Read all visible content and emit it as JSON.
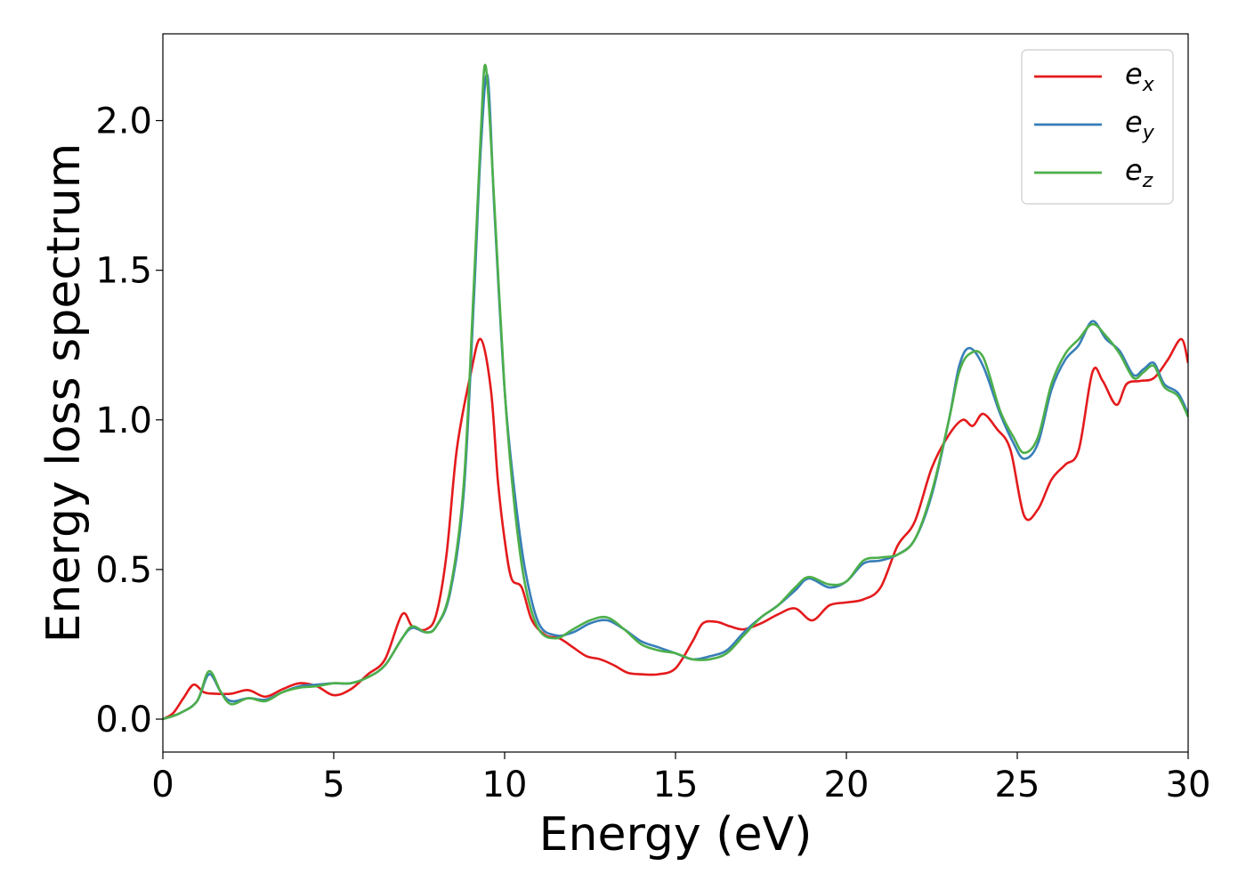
{
  "chart_data": {
    "type": "line",
    "title": "",
    "xlabel": "Energy (eV)",
    "ylabel": "Energy loss spectrum",
    "xlim": [
      0,
      30
    ],
    "ylim": [
      -0.11,
      2.29
    ],
    "xticks": [
      0,
      5,
      10,
      15,
      20,
      25,
      30
    ],
    "xtick_labels": [
      "0",
      "5",
      "10",
      "15",
      "20",
      "25",
      "30"
    ],
    "yticks": [
      0.0,
      0.5,
      1.0,
      1.5,
      2.0
    ],
    "ytick_labels": [
      "0.0",
      "0.5",
      "1.0",
      "1.5",
      "2.0"
    ],
    "grid": false,
    "legend_position": "top-right",
    "series": [
      {
        "name": "e",
        "subscript": "x",
        "color": "#e41a1c",
        "points": [
          [
            0,
            0
          ],
          [
            0.3,
            0.02
          ],
          [
            0.6,
            0.07
          ],
          [
            0.9,
            0.115
          ],
          [
            1.2,
            0.09
          ],
          [
            1.5,
            0.085
          ],
          [
            2.0,
            0.085
          ],
          [
            2.5,
            0.097
          ],
          [
            3.0,
            0.075
          ],
          [
            3.5,
            0.1
          ],
          [
            4.0,
            0.12
          ],
          [
            4.5,
            0.11
          ],
          [
            5.0,
            0.08
          ],
          [
            5.5,
            0.1
          ],
          [
            6.0,
            0.15
          ],
          [
            6.5,
            0.2
          ],
          [
            7.0,
            0.35
          ],
          [
            7.3,
            0.31
          ],
          [
            7.7,
            0.3
          ],
          [
            8.0,
            0.35
          ],
          [
            8.3,
            0.55
          ],
          [
            8.6,
            0.9
          ],
          [
            9.0,
            1.15
          ],
          [
            9.3,
            1.27
          ],
          [
            9.6,
            1.1
          ],
          [
            9.8,
            0.8
          ],
          [
            10.0,
            0.6
          ],
          [
            10.2,
            0.47
          ],
          [
            10.5,
            0.44
          ],
          [
            10.8,
            0.33
          ],
          [
            11.2,
            0.28
          ],
          [
            11.6,
            0.27
          ],
          [
            12.0,
            0.24
          ],
          [
            12.4,
            0.21
          ],
          [
            12.8,
            0.2
          ],
          [
            13.2,
            0.18
          ],
          [
            13.6,
            0.155
          ],
          [
            14.0,
            0.15
          ],
          [
            14.5,
            0.15
          ],
          [
            15.0,
            0.17
          ],
          [
            15.5,
            0.26
          ],
          [
            15.8,
            0.32
          ],
          [
            16.2,
            0.325
          ],
          [
            16.6,
            0.31
          ],
          [
            17.0,
            0.3
          ],
          [
            17.5,
            0.32
          ],
          [
            18.0,
            0.35
          ],
          [
            18.5,
            0.37
          ],
          [
            19.0,
            0.33
          ],
          [
            19.5,
            0.38
          ],
          [
            20.0,
            0.39
          ],
          [
            20.5,
            0.4
          ],
          [
            21.0,
            0.44
          ],
          [
            21.5,
            0.58
          ],
          [
            22.0,
            0.66
          ],
          [
            22.5,
            0.84
          ],
          [
            23.0,
            0.95
          ],
          [
            23.4,
            1.0
          ],
          [
            23.7,
            0.98
          ],
          [
            24.0,
            1.02
          ],
          [
            24.4,
            0.97
          ],
          [
            24.8,
            0.9
          ],
          [
            25.2,
            0.68
          ],
          [
            25.6,
            0.7
          ],
          [
            26.0,
            0.8
          ],
          [
            26.4,
            0.85
          ],
          [
            26.8,
            0.9
          ],
          [
            27.2,
            1.16
          ],
          [
            27.5,
            1.13
          ],
          [
            27.9,
            1.05
          ],
          [
            28.2,
            1.12
          ],
          [
            28.6,
            1.13
          ],
          [
            29.0,
            1.14
          ],
          [
            29.4,
            1.2
          ],
          [
            29.8,
            1.27
          ],
          [
            30.0,
            1.19
          ]
        ]
      },
      {
        "name": "e",
        "subscript": "y",
        "color": "#377eb8",
        "points": [
          [
            0,
            0
          ],
          [
            0.5,
            0.02
          ],
          [
            1.0,
            0.06
          ],
          [
            1.35,
            0.15
          ],
          [
            1.7,
            0.09
          ],
          [
            2.0,
            0.06
          ],
          [
            2.5,
            0.07
          ],
          [
            3.0,
            0.065
          ],
          [
            3.5,
            0.09
          ],
          [
            4.0,
            0.11
          ],
          [
            4.5,
            0.115
          ],
          [
            5.0,
            0.12
          ],
          [
            5.5,
            0.12
          ],
          [
            6.0,
            0.14
          ],
          [
            6.5,
            0.18
          ],
          [
            7.0,
            0.27
          ],
          [
            7.3,
            0.305
          ],
          [
            7.7,
            0.29
          ],
          [
            8.0,
            0.31
          ],
          [
            8.4,
            0.42
          ],
          [
            8.8,
            0.75
          ],
          [
            9.1,
            1.4
          ],
          [
            9.3,
            1.9
          ],
          [
            9.5,
            2.15
          ],
          [
            9.7,
            1.7
          ],
          [
            10.0,
            1.1
          ],
          [
            10.3,
            0.75
          ],
          [
            10.6,
            0.5
          ],
          [
            11.0,
            0.32
          ],
          [
            11.5,
            0.28
          ],
          [
            12.0,
            0.29
          ],
          [
            12.5,
            0.32
          ],
          [
            13.0,
            0.33
          ],
          [
            13.5,
            0.3
          ],
          [
            14.0,
            0.26
          ],
          [
            14.5,
            0.24
          ],
          [
            15.0,
            0.22
          ],
          [
            15.5,
            0.2
          ],
          [
            16.0,
            0.21
          ],
          [
            16.5,
            0.23
          ],
          [
            17.0,
            0.29
          ],
          [
            17.5,
            0.34
          ],
          [
            18.0,
            0.38
          ],
          [
            18.5,
            0.43
          ],
          [
            18.9,
            0.47
          ],
          [
            19.5,
            0.44
          ],
          [
            20.0,
            0.46
          ],
          [
            20.5,
            0.52
          ],
          [
            21.0,
            0.53
          ],
          [
            21.5,
            0.55
          ],
          [
            22.0,
            0.6
          ],
          [
            22.5,
            0.75
          ],
          [
            23.0,
            1.0
          ],
          [
            23.3,
            1.18
          ],
          [
            23.6,
            1.24
          ],
          [
            24.0,
            1.18
          ],
          [
            24.5,
            1.02
          ],
          [
            24.9,
            0.92
          ],
          [
            25.2,
            0.87
          ],
          [
            25.6,
            0.92
          ],
          [
            26.0,
            1.1
          ],
          [
            26.4,
            1.2
          ],
          [
            26.8,
            1.25
          ],
          [
            27.2,
            1.33
          ],
          [
            27.6,
            1.27
          ],
          [
            28.0,
            1.23
          ],
          [
            28.4,
            1.15
          ],
          [
            28.7,
            1.17
          ],
          [
            29.0,
            1.19
          ],
          [
            29.3,
            1.12
          ],
          [
            29.7,
            1.09
          ],
          [
            30.0,
            1.02
          ]
        ]
      },
      {
        "name": "e",
        "subscript": "z",
        "color": "#4daf4a",
        "points": [
          [
            0,
            0
          ],
          [
            0.5,
            0.02
          ],
          [
            1.0,
            0.06
          ],
          [
            1.35,
            0.16
          ],
          [
            1.7,
            0.09
          ],
          [
            2.0,
            0.05
          ],
          [
            2.5,
            0.07
          ],
          [
            3.0,
            0.06
          ],
          [
            3.5,
            0.09
          ],
          [
            4.0,
            0.105
          ],
          [
            4.5,
            0.11
          ],
          [
            5.0,
            0.12
          ],
          [
            5.5,
            0.12
          ],
          [
            6.0,
            0.14
          ],
          [
            6.5,
            0.18
          ],
          [
            7.0,
            0.27
          ],
          [
            7.3,
            0.31
          ],
          [
            7.7,
            0.29
          ],
          [
            8.0,
            0.31
          ],
          [
            8.4,
            0.43
          ],
          [
            8.8,
            0.78
          ],
          [
            9.1,
            1.45
          ],
          [
            9.3,
            1.95
          ],
          [
            9.45,
            2.18
          ],
          [
            9.7,
            1.72
          ],
          [
            10.0,
            1.1
          ],
          [
            10.3,
            0.7
          ],
          [
            10.6,
            0.45
          ],
          [
            11.0,
            0.3
          ],
          [
            11.5,
            0.27
          ],
          [
            12.0,
            0.3
          ],
          [
            12.5,
            0.33
          ],
          [
            13.0,
            0.34
          ],
          [
            13.5,
            0.3
          ],
          [
            14.0,
            0.25
          ],
          [
            14.5,
            0.23
          ],
          [
            15.0,
            0.22
          ],
          [
            15.5,
            0.2
          ],
          [
            16.0,
            0.2
          ],
          [
            16.5,
            0.22
          ],
          [
            17.0,
            0.28
          ],
          [
            17.5,
            0.34
          ],
          [
            18.0,
            0.38
          ],
          [
            18.5,
            0.44
          ],
          [
            18.9,
            0.475
          ],
          [
            19.5,
            0.45
          ],
          [
            20.0,
            0.46
          ],
          [
            20.5,
            0.53
          ],
          [
            21.0,
            0.54
          ],
          [
            21.5,
            0.55
          ],
          [
            22.0,
            0.6
          ],
          [
            22.5,
            0.76
          ],
          [
            23.0,
            1.0
          ],
          [
            23.3,
            1.16
          ],
          [
            23.6,
            1.22
          ],
          [
            24.0,
            1.21
          ],
          [
            24.5,
            1.03
          ],
          [
            24.9,
            0.94
          ],
          [
            25.2,
            0.89
          ],
          [
            25.6,
            0.94
          ],
          [
            26.0,
            1.12
          ],
          [
            26.4,
            1.22
          ],
          [
            26.8,
            1.27
          ],
          [
            27.2,
            1.32
          ],
          [
            27.6,
            1.28
          ],
          [
            28.0,
            1.22
          ],
          [
            28.4,
            1.14
          ],
          [
            28.7,
            1.16
          ],
          [
            29.0,
            1.18
          ],
          [
            29.3,
            1.11
          ],
          [
            29.7,
            1.08
          ],
          [
            30.0,
            1.01
          ]
        ]
      }
    ]
  }
}
